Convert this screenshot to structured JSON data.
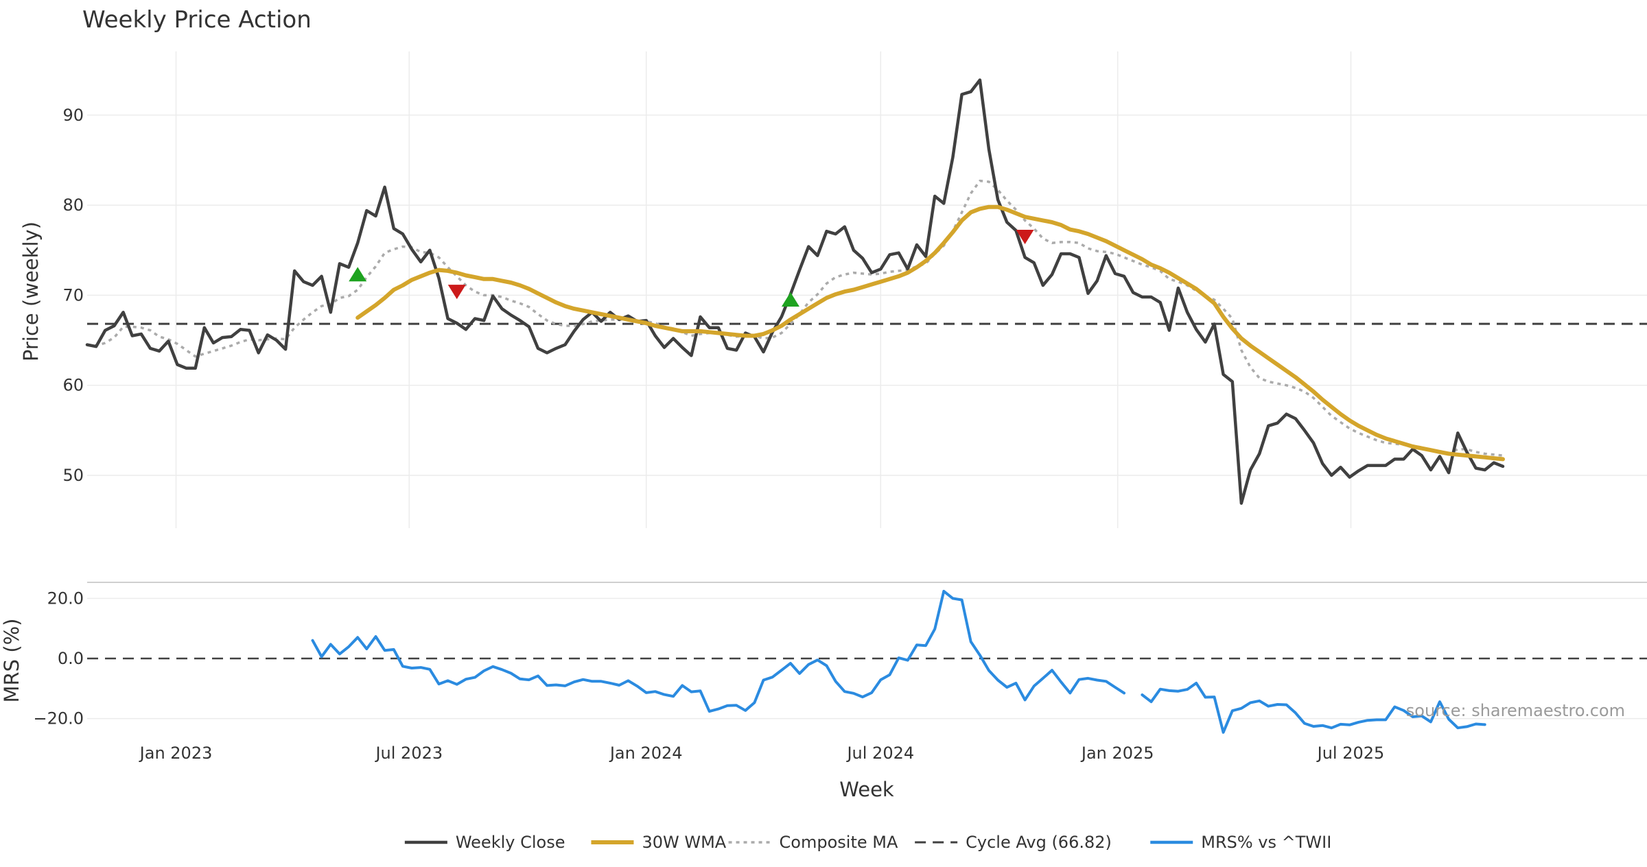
{
  "chart_data": {
    "type": "line",
    "title": "Weekly Price Action",
    "xlabel": "Week",
    "x_start": "2022-10-24",
    "x_step_days": 7,
    "x_ticks": [
      {
        "date": "2023-01-01",
        "label": "Jan 2023"
      },
      {
        "date": "2023-07-01",
        "label": "Jul 2023"
      },
      {
        "date": "2024-01-01",
        "label": "Jan 2024"
      },
      {
        "date": "2024-07-01",
        "label": "Jul 2024"
      },
      {
        "date": "2025-01-01",
        "label": "Jan 2025"
      },
      {
        "date": "2025-07-01",
        "label": "Jul 2025"
      }
    ],
    "grid": true,
    "legend_position": "bottom-center",
    "annotation": "source: sharemaestro.com",
    "panels": [
      {
        "name": "price",
        "ylabel": "Price (weekly)",
        "ylim": [
          44,
          97
        ],
        "yticks": [
          50,
          60,
          70,
          80,
          90
        ],
        "ytick_labels": [
          "50",
          "60",
          "70",
          "80",
          "90"
        ],
        "cycle_avg": 66.82,
        "series": [
          {
            "name": "Weekly Close",
            "color": "#404040",
            "style": "solid",
            "values": [
              64.5,
              64.3,
              66.1,
              66.6,
              68.1,
              65.5,
              65.7,
              64.1,
              63.8,
              64.9,
              62.3,
              61.9,
              61.9,
              66.4,
              64.7,
              65.3,
              65.4,
              66.2,
              66.1,
              63.6,
              65.6,
              65,
              64,
              72.7,
              71.5,
              71.1,
              72.1,
              68.1,
              73.5,
              73.1,
              75.8,
              79.4,
              78.8,
              82,
              77.4,
              76.8,
              75.1,
              73.7,
              75,
              71.9,
              67.4,
              66.9,
              66.2,
              67.4,
              67.2,
              69.9,
              68.5,
              67.8,
              67.2,
              66.5,
              64.1,
              63.6,
              64.1,
              64.5,
              66,
              67.3,
              68.1,
              67.1,
              68.1,
              67.3,
              67.7,
              67.1,
              67.2,
              65.5,
              64.2,
              65.2,
              64.2,
              63.3,
              67.6,
              66.4,
              66.4,
              64.1,
              63.9,
              65.8,
              65.4,
              63.7,
              65.9,
              67.6,
              70.1,
              72.8,
              75.4,
              74.4,
              77.1,
              76.8,
              77.6,
              75,
              74.1,
              72.5,
              72.9,
              74.5,
              74.7,
              72.9,
              75.6,
              74.3,
              81,
              80.2,
              85.3,
              92.3,
              92.6,
              93.9,
              86.2,
              80.6,
              78.1,
              77.2,
              74.2,
              73.6,
              71.1,
              72.3,
              74.6,
              74.6,
              74.2,
              70.2,
              71.6,
              74.4,
              72.4,
              72.1,
              70.3,
              69.8,
              69.8,
              69.2,
              66.1,
              70.8,
              68.1,
              66.2,
              64.8,
              66.8,
              61.2,
              60.4,
              46.9,
              50.6,
              52.4,
              55.5,
              55.8,
              56.8,
              56.3,
              55,
              53.6,
              51.3,
              50,
              50.9,
              49.8,
              50.5,
              51.1,
              51.1,
              51.1,
              51.8,
              51.8,
              52.9,
              52.2,
              50.6,
              52.1,
              50.3,
              54.7,
              52.6,
              50.8,
              50.6,
              51.4,
              51
            ]
          },
          {
            "name": "30W WMA",
            "color": "#d4a52b",
            "style": "solid",
            "start_index": 30,
            "values": [
              67.5,
              68.2,
              68.9,
              69.7,
              70.6,
              71.1,
              71.7,
              72.1,
              72.5,
              72.8,
              72.7,
              72.5,
              72.2,
              72,
              71.8,
              71.8,
              71.6,
              71.4,
              71.1,
              70.7,
              70.2,
              69.7,
              69.2,
              68.8,
              68.5,
              68.3,
              68.1,
              67.9,
              67.7,
              67.5,
              67.3,
              67.1,
              66.9,
              66.6,
              66.4,
              66.2,
              66,
              66,
              66,
              65.9,
              65.8,
              65.7,
              65.6,
              65.5,
              65.5,
              65.7,
              66.1,
              66.6,
              67.3,
              67.9,
              68.5,
              69.1,
              69.7,
              70.1,
              70.4,
              70.6,
              70.9,
              71.2,
              71.5,
              71.8,
              72.1,
              72.5,
              73.1,
              73.8,
              74.7,
              75.8,
              77,
              78.3,
              79.2,
              79.6,
              79.8,
              79.8,
              79.5,
              79.1,
              78.7,
              78.5,
              78.3,
              78.1,
              77.8,
              77.3,
              77.1,
              76.8,
              76.4,
              76,
              75.5,
              75,
              74.5,
              74,
              73.4,
              73,
              72.5,
              71.9,
              71.3,
              70.7,
              69.9,
              69.1,
              67.6,
              66.3,
              65.2,
              64.4,
              63.7,
              63,
              62.3,
              61.6,
              60.9,
              60.1,
              59.3,
              58.4,
              57.6,
              56.8,
              56.1,
              55.5,
              55,
              54.5,
              54.1,
              53.8,
              53.5,
              53.2,
              53,
              52.8,
              52.6,
              52.4,
              52.3,
              52.2,
              52.1,
              52,
              51.9,
              51.8
            ]
          },
          {
            "name": "Composite MA",
            "color": "#ababab",
            "style": "dotted",
            "values": [
              64.5,
              64.4,
              64.7,
              65.3,
              66.5,
              66.5,
              66.4,
              66.1,
              65.4,
              65.1,
              64.6,
              63.9,
              63.2,
              63.5,
              63.8,
              64.1,
              64.4,
              64.8,
              65.1,
              65,
              65.1,
              65.2,
              65.1,
              66.4,
              67.3,
              68.1,
              68.8,
              69,
              69.7,
              69.9,
              70.6,
              72,
              73.2,
              74.7,
              75.1,
              75.4,
              75.3,
              74.8,
              74.7,
              74.2,
              73.1,
              72.1,
              71.1,
              70.4,
              70,
              70,
              69.8,
              69.4,
              69.1,
              68.7,
              67.9,
              67.2,
              66.8,
              66.6,
              66.6,
              66.8,
              67.1,
              67.2,
              67.3,
              67.3,
              67.4,
              67.2,
              67.1,
              66.9,
              66.5,
              66.3,
              65.9,
              65.5,
              65.7,
              65.8,
              65.9,
              65.6,
              65.4,
              65.5,
              65.5,
              65.2,
              65.3,
              65.8,
              66.8,
              67.9,
              69.2,
              70.1,
              71.3,
              72,
              72.3,
              72.5,
              72.4,
              72.3,
              72.4,
              72.6,
              72.7,
              72.8,
              73.2,
              73.5,
              74.6,
              75.5,
              77.1,
              79.2,
              81.3,
              82.7,
              82.6,
              81.7,
              80.5,
              79.5,
              78.3,
              77.4,
              76.3,
              75.8,
              75.9,
              75.9,
              75.8,
              75.2,
              74.9,
              74.8,
              74.6,
              74.2,
              73.8,
              73.4,
              73.1,
              72.7,
              71.8,
              71.5,
              71.1,
              70.5,
              69.9,
              69.5,
              68.5,
              67.4,
              63.9,
              62,
              60.8,
              60.4,
              60.2,
              60,
              59.7,
              59.3,
              58.6,
              57.6,
              56.6,
              55.9,
              55.2,
              54.7,
              54.3,
              53.9,
              53.6,
              53.5,
              53.4,
              53.3,
              53.1,
              52.8,
              52.7,
              52.4,
              52.9,
              52.9,
              52.6,
              52.4,
              52.3,
              52.2
            ]
          }
        ],
        "markers": [
          {
            "type": "buy",
            "index": 30,
            "y": 72.3,
            "color": "#1ea320"
          },
          {
            "type": "sell",
            "index": 41,
            "y": 70.4,
            "color": "#cc1a1a"
          },
          {
            "type": "buy",
            "index": 78,
            "y": 69.5,
            "color": "#1ea320"
          },
          {
            "type": "sell",
            "index": 104,
            "y": 76.5,
            "color": "#cc1a1a"
          }
        ]
      },
      {
        "name": "mrs",
        "ylabel": "MRS (%)",
        "ylim": [
          -28,
          25
        ],
        "yticks": [
          -20,
          0,
          20
        ],
        "ytick_labels": [
          "−20.0",
          "0.0",
          "20.0"
        ],
        "zero_line": 0,
        "series": [
          {
            "name": "MRS% vs ^TWII",
            "color": "#2b8be0",
            "style": "solid",
            "start_index": 25,
            "values": [
              6,
              0.6,
              4.7,
              1.5,
              3.9,
              7,
              3.2,
              7.3,
              2.7,
              3,
              -2.6,
              -3.2,
              -3,
              -3.6,
              -8.5,
              -7.4,
              -8.6,
              -6.9,
              -6.3,
              -4.1,
              -2.7,
              -3.7,
              -4.9,
              -6.8,
              -7.1,
              -5.8,
              -9,
              -8.8,
              -9.1,
              -7.8,
              -7,
              -7.6,
              -7.6,
              -8.2,
              -8.9,
              -7.4,
              -9.2,
              -11.4,
              -11,
              -12,
              -12.6,
              -9,
              -11.1,
              -10.8,
              -17.6,
              -16.8,
              -15.7,
              -15.6,
              -17.3,
              -14.7,
              -7.2,
              -6.2,
              -3.9,
              -1.6,
              -5,
              -2,
              -0.5,
              -2.4,
              -7.6,
              -11,
              -11.6,
              -12.8,
              -11.4,
              -7.1,
              -5.4,
              0.2,
              -0.6,
              4.5,
              4.3,
              9.8,
              22.4,
              20,
              19.5,
              5.6,
              1.1,
              -4,
              -7.2,
              -9.6,
              -8.2,
              -13.8,
              -9.2,
              -6.6,
              -3.9,
              -7.8,
              -11.5,
              -7,
              -6.6,
              -7.2,
              -7.6,
              -9.6,
              -11.5,
              null,
              -12.1,
              -14.4,
              -10.2,
              -10.7,
              -10.9,
              -10.3,
              -8.2,
              -12.9,
              -12.8,
              -24.6,
              -17.4,
              -16.6,
              -14.7,
              -14.1,
              -15.9,
              -15.3,
              -15.4,
              -18.1,
              -21.6,
              -22.6,
              -22.3,
              -23.1,
              -21.9,
              -22.1,
              -21.2,
              -20.6,
              -20.4,
              -20.4,
              -16.1,
              -17.3,
              -19.4,
              -19.1,
              -21.1,
              -14.4,
              -20.2,
              -23.1,
              -22.7,
              -21.8,
              -22
            ]
          }
        ]
      }
    ],
    "legend": [
      {
        "name": "Weekly Close",
        "color": "#404040",
        "style": "solid"
      },
      {
        "name": "30W WMA",
        "color": "#d4a52b",
        "style": "solid"
      },
      {
        "name": "Composite MA",
        "color": "#ababab",
        "style": "dotted"
      },
      {
        "name": "Cycle Avg (66.82)",
        "color": "#404040",
        "style": "dashed"
      },
      {
        "name": "MRS% vs ^TWII",
        "color": "#2b8be0",
        "style": "solid"
      }
    ]
  }
}
